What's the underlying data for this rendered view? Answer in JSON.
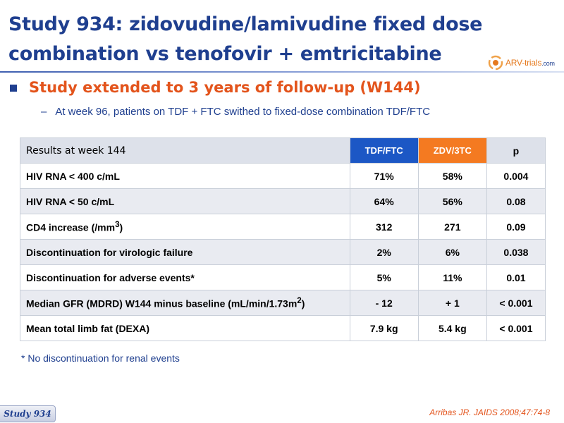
{
  "header": {
    "title_line1": "Study 934: zidovudine/lamivudine fixed dose",
    "title_line2": "combination vs tenofovir + emtricitabine",
    "logo_text": "ARV-trials",
    "logo_domain": ".com"
  },
  "bullet": {
    "text": "Study extended to 3 years of follow-up (W144)",
    "sub_dash": "–",
    "sub_text": "At week 96, patients on TDF + FTC swithed to fixed-dose combination TDF/FTC"
  },
  "table": {
    "headers": [
      "Results at week 144",
      "TDF/FTC",
      "ZDV/3TC",
      "p"
    ],
    "rows": [
      {
        "label": "HIV RNA < 400 c/mL",
        "tdf_ftc": "71%",
        "zdv_3tc": "58%",
        "p": "0.004"
      },
      {
        "label": "HIV RNA < 50 c/mL",
        "tdf_ftc": "64%",
        "zdv_3tc": "56%",
        "p": "0.08"
      },
      {
        "label_main": "CD4 increase (/mm",
        "label_sup": "3",
        "label_end": ")",
        "tdf_ftc": "312",
        "zdv_3tc": "271",
        "p": "0.09"
      },
      {
        "label": "Discontinuation for virologic failure",
        "tdf_ftc": "2%",
        "zdv_3tc": "6%",
        "p": "0.038"
      },
      {
        "label": "Discontinuation for adverse events*",
        "tdf_ftc": "5%",
        "zdv_3tc": "11%",
        "p": "0.01"
      },
      {
        "label_main": "Median GFR (MDRD) W144 minus baseline (mL/min/1.73m",
        "label_sup": "2",
        "label_end": ")",
        "tdf_ftc": "- 12",
        "zdv_3tc": "+ 1",
        "p": "< 0.001"
      },
      {
        "label": "Mean total limb fat (DEXA)",
        "tdf_ftc": "7.9 kg",
        "zdv_3tc": "5.4 kg",
        "p": "< 0.001"
      }
    ]
  },
  "footnote": "* No discontinuation for renal events",
  "footer": {
    "study_tag": "Study 934",
    "citation": "Arribas JR. JAIDS 2008;47:74-8"
  },
  "colors": {
    "title_blue": "#1f3f8f",
    "accent_orange": "#e3541c",
    "tdf_header": "#1c57c5",
    "zdv_header": "#f47a21"
  }
}
